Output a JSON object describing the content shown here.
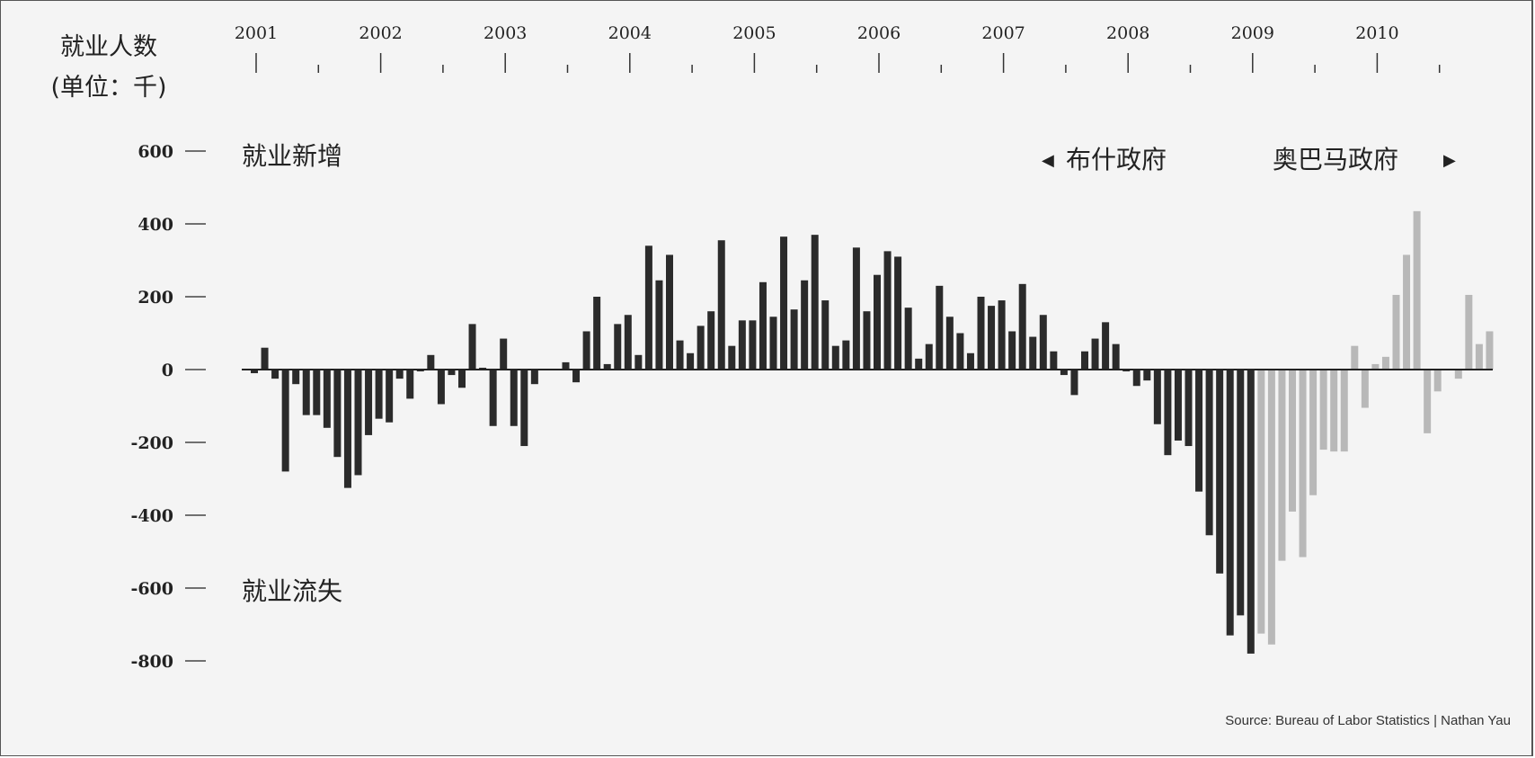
{
  "chart_data": {
    "type": "bar",
    "title": "就业人数",
    "title_unit": "(单位：千)",
    "label_gain": "就业新增",
    "label_loss": "就业流失",
    "admin_bush": "布什政府",
    "admin_obama": "奥巴马政府",
    "source": "Source: Bureau of Labor Statistics | Nathan Yau",
    "year_labels": [
      "2001",
      "2002",
      "2003",
      "2004",
      "2005",
      "2006",
      "2007",
      "2008",
      "2009",
      "2010"
    ],
    "y_ticks": [
      600,
      400,
      200,
      0,
      -200,
      -400,
      -600,
      -800
    ],
    "y_tick_labels": [
      "600",
      "400",
      "200",
      "0",
      "-200",
      "-400",
      "-600",
      "-800"
    ],
    "ylim": [
      -820,
      640
    ],
    "start": "2001-01",
    "bush_color": "#2b2b2b",
    "obama_color": "#b8b8b8",
    "grid": false,
    "series": [
      {
        "administration": "bush",
        "values": [
          -10,
          60,
          -25,
          -280,
          -40,
          -125,
          -125,
          -160,
          -240,
          -325,
          -290,
          -180,
          -135,
          -145,
          -25,
          -80,
          -5,
          40,
          -95,
          -15,
          -50,
          125,
          5,
          -155,
          85,
          -155,
          -210,
          -40,
          0,
          0,
          20,
          -35,
          105,
          200,
          15,
          125,
          150,
          40,
          340,
          245,
          315,
          80,
          45,
          120,
          160,
          355,
          65,
          135,
          135,
          240,
          145,
          365,
          165,
          245,
          370,
          190,
          65,
          80,
          335,
          160,
          260,
          325,
          310,
          170,
          30,
          70,
          230,
          145,
          100,
          45,
          200,
          175,
          190,
          105,
          235,
          90,
          150,
          50,
          -15,
          -70,
          50,
          85,
          130,
          70,
          -5,
          -45,
          -30,
          -150,
          -235,
          -195,
          -210,
          -335,
          -455,
          -560,
          -730,
          -675,
          -780
        ]
      },
      {
        "administration": "obama",
        "values": [
          -725,
          -755,
          -525,
          -390,
          -515,
          -345,
          -220,
          -225,
          -225,
          65,
          -105,
          15,
          35,
          205,
          315,
          435,
          -175,
          -60,
          0,
          -25,
          205,
          70,
          105
        ]
      }
    ]
  }
}
